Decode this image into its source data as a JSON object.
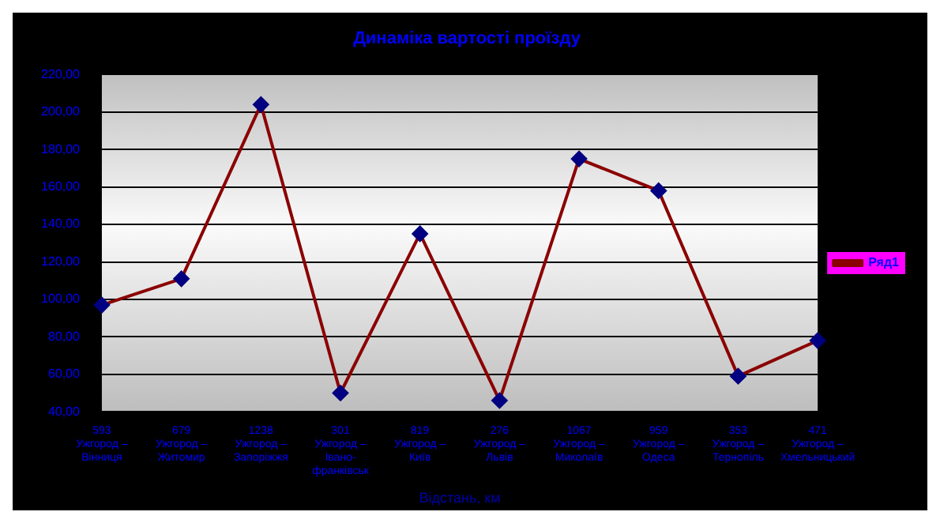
{
  "chart_data": {
    "type": "line",
    "title": "Динаміка вартості проїзду",
    "xlabel": "Відстань, км",
    "categories": [
      "593\nУжгород –\nВінниця",
      "679\nУжгород –\nЖитомир",
      "1238\nУжгород –\nЗапоріжжя",
      "301\nУжгород –\nІвано-\nфранківськ",
      "819\nУжгород –\nКиїв",
      "276\nУжгород –\nЛьвів",
      "1067\nУжгород –\nМиколаїв",
      "959\nУжгород –\nОдеса",
      "353\nУжгород –\nТернопіль",
      "471\nУжгород –\nХмельницький"
    ],
    "series": [
      {
        "name": "Ряд1",
        "color": "#8b0000",
        "values": [
          97,
          111,
          204,
          50,
          135,
          46,
          175,
          158,
          59,
          78
        ]
      }
    ],
    "ylim": [
      40,
      220
    ],
    "yticks": [
      {
        "value": 40,
        "label": "40,00"
      },
      {
        "value": 60,
        "label": "60,00"
      },
      {
        "value": 80,
        "label": "80,00"
      },
      {
        "value": 100,
        "label": "100,00"
      },
      {
        "value": 120,
        "label": "120,00"
      },
      {
        "value": 140,
        "label": "140,00"
      },
      {
        "value": 160,
        "label": "160,00"
      },
      {
        "value": 180,
        "label": "180,00"
      },
      {
        "value": 200,
        "label": "200,00"
      },
      {
        "value": 220,
        "label": "220,00"
      }
    ],
    "grid": "y",
    "legend": "right",
    "marker": "diamond",
    "line_style": "solid"
  }
}
